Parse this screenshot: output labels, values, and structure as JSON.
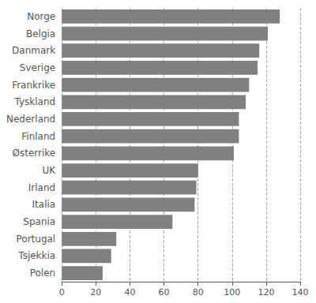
{
  "chart_data": {
    "type": "bar",
    "orientation": "horizontal",
    "categories": [
      "Norge",
      "Belgia",
      "Danmark",
      "Sverige",
      "Frankrike",
      "Tyskland",
      "Nederland",
      "Finland",
      "Østerrike",
      "UK",
      "Irland",
      "Italia",
      "Spania",
      "Portugal",
      "Tsjekkia",
      "Polen"
    ],
    "values": [
      128,
      121,
      116,
      115,
      110,
      108,
      104,
      104,
      101,
      80,
      79,
      78,
      65,
      32,
      29,
      24
    ],
    "color": "#808080",
    "xlim": [
      0,
      140
    ],
    "xticks": [
      0,
      20,
      40,
      60,
      80,
      100,
      120,
      140
    ],
    "grid": true
  }
}
